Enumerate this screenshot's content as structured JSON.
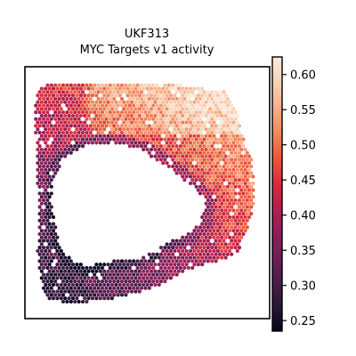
{
  "chart_data": {
    "type": "heatmap",
    "title": "UKF313",
    "subtitle": "MYC Targets v1 activity",
    "xlabel": "",
    "ylabel": "",
    "x_ticks": [],
    "y_ticks": [],
    "grid": false,
    "legend": "colorbar-right",
    "colorbar": {
      "min": 0.235,
      "max": 0.625,
      "ticks": [
        0.25,
        0.3,
        0.35,
        0.4,
        0.45,
        0.5,
        0.55,
        0.6
      ],
      "tick_labels": [
        "0.25",
        "0.30",
        "0.35",
        "0.40",
        "0.45",
        "0.50",
        "0.55",
        "0.60"
      ],
      "colormap": "rocket",
      "colors": [
        "#03051a",
        "#2a1636",
        "#4c1d4b",
        "#701f57",
        "#931e5b",
        "#b61f4f",
        "#d82e3f",
        "#ea5b3a",
        "#f18a5f",
        "#f5b08c",
        "#f8d2b8",
        "#faebdd"
      ]
    },
    "spot_activity_range": [
      0.24,
      0.62
    ],
    "high_activity_region": "upper-right band",
    "low_activity_region": "lower-left and inner border"
  }
}
